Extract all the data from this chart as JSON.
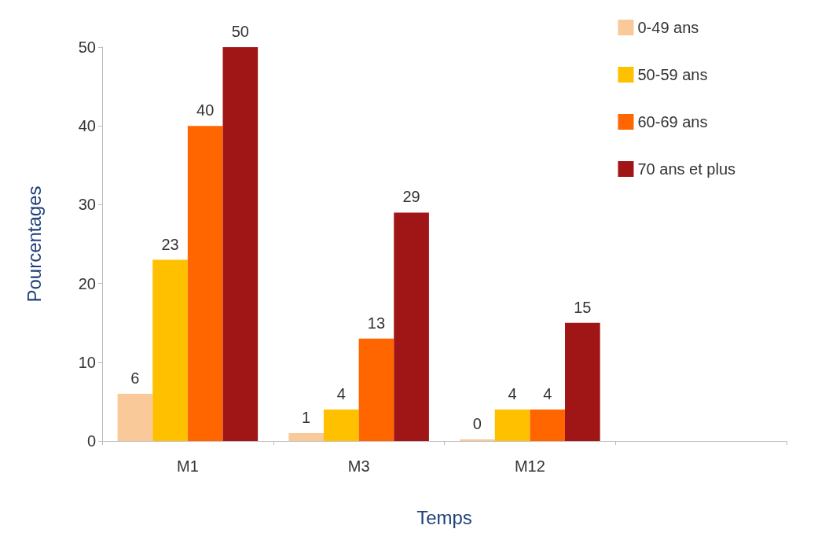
{
  "chart_data": {
    "type": "bar",
    "xlabel": "Temps",
    "ylabel": "Pourcentages",
    "categories": [
      "M1",
      "M3",
      "M12",
      null
    ],
    "series": [
      {
        "name": "0-49 ans",
        "color": "#f9c99a",
        "values": [
          6,
          1,
          0,
          null
        ]
      },
      {
        "name": "50-59 ans",
        "color": "#ffc000",
        "values": [
          23,
          4,
          4,
          null
        ]
      },
      {
        "name": "60-69 ans",
        "color": "#ff6600",
        "values": [
          40,
          13,
          4,
          null
        ]
      },
      {
        "name": "70 ans et plus",
        "color": "#a01515",
        "values": [
          50,
          29,
          15,
          null
        ]
      }
    ],
    "ylim": [
      0,
      50
    ],
    "yticks": [
      0,
      10,
      20,
      30,
      40,
      50
    ],
    "data_labels": true,
    "grid": false,
    "legend": "top right"
  }
}
